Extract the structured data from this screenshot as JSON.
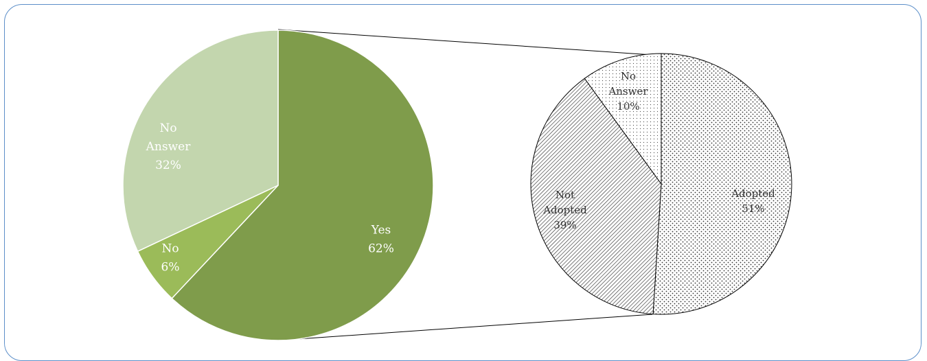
{
  "chart_data": [
    {
      "type": "pie",
      "slices": [
        {
          "label": "Yes",
          "value": 62,
          "text": "62%",
          "color": "#7f9c4b"
        },
        {
          "label": "No",
          "value": 6,
          "text": "6%",
          "color": "#9bbb59"
        },
        {
          "label": "No Answer",
          "value": 32,
          "text": "32%",
          "color": "#c3d6ae"
        }
      ],
      "exploded_slice": "Yes"
    },
    {
      "type": "pie",
      "slices": [
        {
          "label": "Adopted",
          "value": 51,
          "text": "51%",
          "pattern": "dots"
        },
        {
          "label": "Not Adopted",
          "value": 39,
          "text": "39%",
          "pattern": "diagonal-lines"
        },
        {
          "label": "No Answer",
          "value": 10,
          "text": "10%",
          "pattern": "fine-dots"
        }
      ]
    }
  ]
}
